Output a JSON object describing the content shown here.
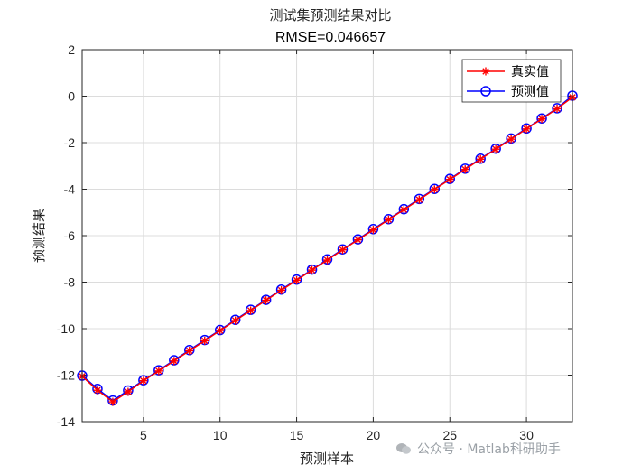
{
  "chart_data": {
    "type": "line",
    "title": "测试集预测结果对比",
    "subtitle": "RMSE=0.046657",
    "xlabel": "预测样本",
    "ylabel": "预测结果",
    "xlim": [
      1,
      33
    ],
    "ylim": [
      -14,
      2
    ],
    "xticks": [
      5,
      10,
      15,
      20,
      25,
      30
    ],
    "yticks": [
      2,
      0,
      -2,
      -4,
      -6,
      -8,
      -10,
      -12,
      -14
    ],
    "grid": true,
    "legend_position": "top-right",
    "x": [
      1,
      2,
      3,
      4,
      5,
      6,
      7,
      8,
      9,
      10,
      11,
      12,
      13,
      14,
      15,
      16,
      17,
      18,
      19,
      20,
      21,
      22,
      23,
      24,
      25,
      26,
      27,
      28,
      29,
      30,
      31,
      32,
      33
    ],
    "series": [
      {
        "name": "真实值",
        "color": "#ff0000",
        "marker": "asterisk",
        "values": [
          -12.05,
          -12.65,
          -13.15,
          -12.72,
          -12.24,
          -11.82,
          -11.39,
          -10.95,
          -10.52,
          -10.08,
          -9.65,
          -9.22,
          -8.78,
          -8.35,
          -7.92,
          -7.48,
          -7.05,
          -6.61,
          -6.18,
          -5.75,
          -5.31,
          -4.88,
          -4.45,
          -4.01,
          -3.58,
          -3.15,
          -2.71,
          -2.28,
          -1.85,
          -1.41,
          -0.98,
          -0.54,
          -0.05
        ]
      },
      {
        "name": "预测值",
        "color": "#0000ff",
        "marker": "circle",
        "values": [
          -12.02,
          -12.59,
          -13.09,
          -12.66,
          -12.22,
          -11.79,
          -11.36,
          -10.92,
          -10.49,
          -10.06,
          -9.62,
          -9.19,
          -8.76,
          -8.32,
          -7.89,
          -7.46,
          -7.02,
          -6.59,
          -6.16,
          -5.72,
          -5.29,
          -4.86,
          -4.42,
          -3.99,
          -3.56,
          -3.12,
          -2.69,
          -2.26,
          -1.82,
          -1.39,
          -0.96,
          -0.52,
          0.02
        ]
      }
    ]
  },
  "watermark": {
    "text": "公众号 · Matlab科研助手",
    "icon": "wechat-icon"
  }
}
